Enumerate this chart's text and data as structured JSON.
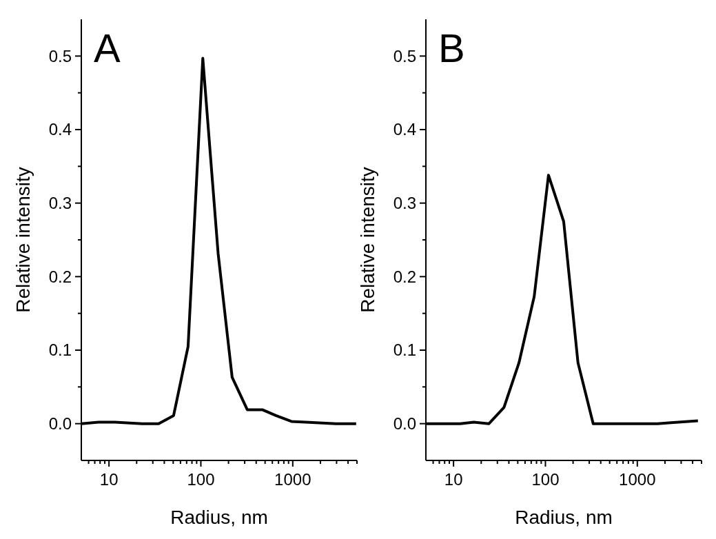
{
  "chart_data": [
    {
      "type": "line",
      "title": "A",
      "xlabel": "Radius, nm",
      "ylabel": "Relative intensity",
      "log": "x",
      "xlim": [
        5,
        5000
      ],
      "ylim": [
        -0.05,
        0.55
      ],
      "xticks": [
        {
          "value": 6,
          "label": null
        },
        {
          "value": 7,
          "label": null
        },
        {
          "value": 8,
          "label": null
        },
        {
          "value": 9,
          "label": null
        },
        10,
        {
          "value": 20,
          "label": null
        },
        {
          "value": 30,
          "label": null
        },
        {
          "value": 40,
          "label": null
        },
        {
          "value": 50,
          "label": null
        },
        {
          "value": 60,
          "label": null
        },
        {
          "value": 70,
          "label": null
        },
        {
          "value": 80,
          "label": null
        },
        {
          "value": 90,
          "label": null
        },
        100,
        {
          "value": 200,
          "label": null
        },
        {
          "value": 300,
          "label": null
        },
        {
          "value": 400,
          "label": null
        },
        {
          "value": 500,
          "label": null
        },
        {
          "value": 600,
          "label": null
        },
        {
          "value": 700,
          "label": null
        },
        {
          "value": 800,
          "label": null
        },
        {
          "value": 900,
          "label": null
        },
        1000,
        {
          "value": 2000,
          "label": null
        },
        {
          "value": 3000,
          "label": null
        },
        {
          "value": 4000,
          "label": null
        },
        {
          "value": 5000,
          "label": null
        }
      ],
      "yticks": [
        {
          "value": 0,
          "label": "0.0"
        },
        {
          "value": 0.05,
          "label": null
        },
        0.1,
        {
          "value": 0.15,
          "label": null
        },
        0.2,
        {
          "value": 0.25,
          "label": null
        },
        0.3,
        {
          "value": 0.35,
          "label": null
        },
        0.4,
        {
          "value": 0.45,
          "label": null
        },
        0.5
      ],
      "marker": "none",
      "line_style": "solid",
      "series": [
        {
          "color": "#000000",
          "x": [
            5,
            7.7,
            11.6,
            23,
            34.7,
            50.5,
            72.6,
            105,
            154,
            219,
            320,
            466,
            656,
            968,
            1390,
            2950,
            4900
          ],
          "values": [
            0,
            0.002,
            0.002,
            0,
            0,
            0.011,
            0.105,
            0.497,
            0.232,
            0.063,
            0.019,
            0.019,
            0.011,
            0.003,
            0.002,
            0,
            0
          ]
        }
      ]
    },
    {
      "type": "line",
      "title": "B",
      "xlabel": "Radius, nm",
      "ylabel": "Relative intensity",
      "log": "x",
      "xlim": [
        5,
        5000
      ],
      "ylim": [
        -0.05,
        0.55
      ],
      "xticks": [
        {
          "value": 6,
          "label": null
        },
        {
          "value": 7,
          "label": null
        },
        {
          "value": 8,
          "label": null
        },
        {
          "value": 9,
          "label": null
        },
        10,
        {
          "value": 20,
          "label": null
        },
        {
          "value": 30,
          "label": null
        },
        {
          "value": 40,
          "label": null
        },
        {
          "value": 50,
          "label": null
        },
        {
          "value": 60,
          "label": null
        },
        {
          "value": 70,
          "label": null
        },
        {
          "value": 80,
          "label": null
        },
        {
          "value": 90,
          "label": null
        },
        100,
        {
          "value": 200,
          "label": null
        },
        {
          "value": 300,
          "label": null
        },
        {
          "value": 400,
          "label": null
        },
        {
          "value": 500,
          "label": null
        },
        {
          "value": 600,
          "label": null
        },
        {
          "value": 700,
          "label": null
        },
        {
          "value": 800,
          "label": null
        },
        {
          "value": 900,
          "label": null
        },
        1000,
        {
          "value": 2000,
          "label": null
        },
        {
          "value": 3000,
          "label": null
        },
        {
          "value": 4000,
          "label": null
        },
        {
          "value": 5000,
          "label": null
        }
      ],
      "yticks": [
        {
          "value": 0,
          "label": "0.0"
        },
        {
          "value": 0.05,
          "label": null
        },
        0.1,
        {
          "value": 0.15,
          "label": null
        },
        0.2,
        {
          "value": 0.25,
          "label": null
        },
        0.3,
        {
          "value": 0.35,
          "label": null
        },
        0.4,
        {
          "value": 0.45,
          "label": null
        },
        0.5
      ],
      "marker": "none",
      "line_style": "solid",
      "series": [
        {
          "color": "#000000",
          "x": [
            5,
            11.8,
            16.6,
            24.3,
            35.4,
            51.6,
            75.5,
            108,
            158,
            226,
            331,
            1660,
            2190,
            4570
          ],
          "values": [
            0,
            0,
            0.002,
            0,
            0.022,
            0.083,
            0.173,
            0.338,
            0.275,
            0.083,
            0,
            0,
            0.001,
            0.004
          ]
        }
      ]
    }
  ]
}
